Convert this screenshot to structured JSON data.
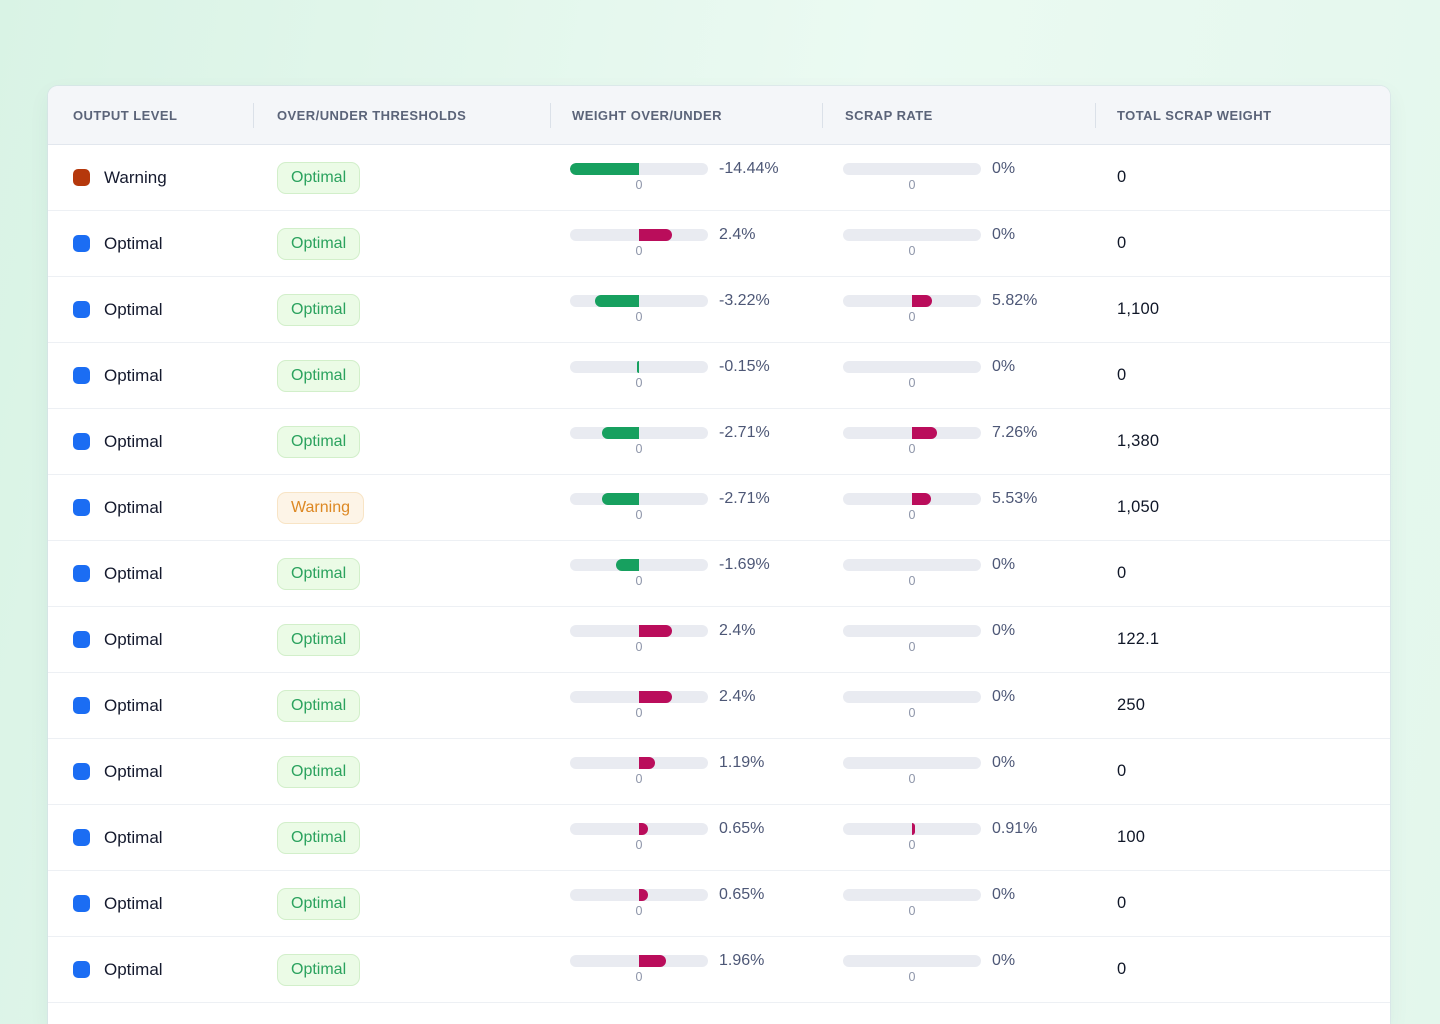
{
  "background": {
    "gradient_from": "#d9f3e5",
    "gradient_to": "#e3f7ec"
  },
  "colors": {
    "bar_green": "#17a05f",
    "bar_magenta": "#ba0d5b",
    "bar_track": "#e9ebf1",
    "status_icon": {
      "warning": "#b5380c",
      "optimal": "#1b6df3"
    },
    "badge": {
      "optimal": {
        "bg": "#ebfbe6",
        "border": "#d2efca",
        "text": "#2ba25e"
      },
      "warning": {
        "bg": "#fdf4e7",
        "border": "#f8e4c5",
        "text": "#dd8823"
      }
    }
  },
  "scales": {
    "weight_over_under_abs_max_pct": 5,
    "scrap_rate_max_pct": 20
  },
  "table": {
    "zero_label": "0",
    "columns": [
      {
        "label": "OUTPUT LEVEL"
      },
      {
        "label": "OVER/UNDER THRESHOLDS"
      },
      {
        "label": "WEIGHT OVER/UNDER"
      },
      {
        "label": "SCRAP RATE"
      },
      {
        "label": "TOTAL SCRAP WEIGHT"
      }
    ],
    "rows": [
      {
        "output_status": "warning",
        "output_level": "Warning",
        "threshold_status": "optimal",
        "threshold_badge": "Optimal",
        "weight_pct": "-14.44%",
        "weight_value": -14.44,
        "scrap_pct": "0%",
        "scrap_value": 0,
        "total": "0"
      },
      {
        "output_status": "optimal",
        "output_level": "Optimal",
        "threshold_status": "optimal",
        "threshold_badge": "Optimal",
        "weight_pct": "2.4%",
        "weight_value": 2.4,
        "scrap_pct": "0%",
        "scrap_value": 0,
        "total": "0"
      },
      {
        "output_status": "optimal",
        "output_level": "Optimal",
        "threshold_status": "optimal",
        "threshold_badge": "Optimal",
        "weight_pct": "-3.22%",
        "weight_value": -3.22,
        "scrap_pct": "5.82%",
        "scrap_value": 5.82,
        "total": "1,100"
      },
      {
        "output_status": "optimal",
        "output_level": "Optimal",
        "threshold_status": "optimal",
        "threshold_badge": "Optimal",
        "weight_pct": "-0.15%",
        "weight_value": -0.15,
        "scrap_pct": "0%",
        "scrap_value": 0,
        "total": "0"
      },
      {
        "output_status": "optimal",
        "output_level": "Optimal",
        "threshold_status": "optimal",
        "threshold_badge": "Optimal",
        "weight_pct": "-2.71%",
        "weight_value": -2.71,
        "scrap_pct": "7.26%",
        "scrap_value": 7.26,
        "total": "1,380"
      },
      {
        "output_status": "optimal",
        "output_level": "Optimal",
        "threshold_status": "warning",
        "threshold_badge": "Warning",
        "weight_pct": "-2.71%",
        "weight_value": -2.71,
        "scrap_pct": "5.53%",
        "scrap_value": 5.53,
        "total": "1,050"
      },
      {
        "output_status": "optimal",
        "output_level": "Optimal",
        "threshold_status": "optimal",
        "threshold_badge": "Optimal",
        "weight_pct": "-1.69%",
        "weight_value": -1.69,
        "scrap_pct": "0%",
        "scrap_value": 0,
        "total": "0"
      },
      {
        "output_status": "optimal",
        "output_level": "Optimal",
        "threshold_status": "optimal",
        "threshold_badge": "Optimal",
        "weight_pct": "2.4%",
        "weight_value": 2.4,
        "scrap_pct": "0%",
        "scrap_value": 0,
        "total": "122.1"
      },
      {
        "output_status": "optimal",
        "output_level": "Optimal",
        "threshold_status": "optimal",
        "threshold_badge": "Optimal",
        "weight_pct": "2.4%",
        "weight_value": 2.4,
        "scrap_pct": "0%",
        "scrap_value": 0,
        "total": "250"
      },
      {
        "output_status": "optimal",
        "output_level": "Optimal",
        "threshold_status": "optimal",
        "threshold_badge": "Optimal",
        "weight_pct": "1.19%",
        "weight_value": 1.19,
        "scrap_pct": "0%",
        "scrap_value": 0,
        "total": "0"
      },
      {
        "output_status": "optimal",
        "output_level": "Optimal",
        "threshold_status": "optimal",
        "threshold_badge": "Optimal",
        "weight_pct": "0.65%",
        "weight_value": 0.65,
        "scrap_pct": "0.91%",
        "scrap_value": 0.91,
        "total": "100"
      },
      {
        "output_status": "optimal",
        "output_level": "Optimal",
        "threshold_status": "optimal",
        "threshold_badge": "Optimal",
        "weight_pct": "0.65%",
        "weight_value": 0.65,
        "scrap_pct": "0%",
        "scrap_value": 0,
        "total": "0"
      },
      {
        "output_status": "optimal",
        "output_level": "Optimal",
        "threshold_status": "optimal",
        "threshold_badge": "Optimal",
        "weight_pct": "1.96%",
        "weight_value": 1.96,
        "scrap_pct": "0%",
        "scrap_value": 0,
        "total": "0"
      }
    ]
  }
}
